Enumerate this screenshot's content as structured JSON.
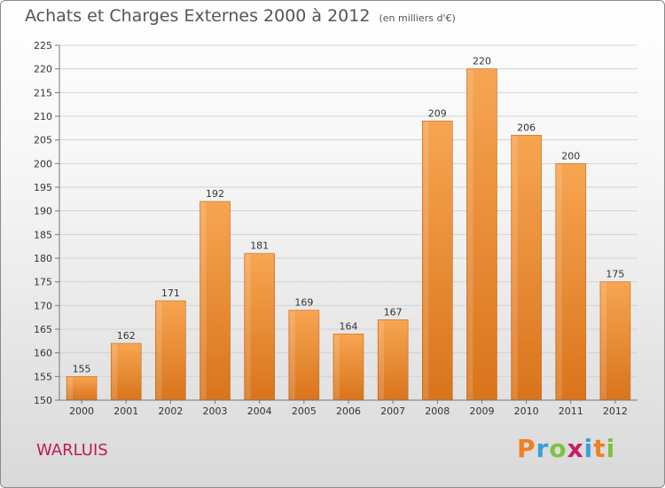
{
  "title": "Achats et Charges Externes 2000 à 2012",
  "subtitle": "(en milliers d'€)",
  "town": "WARLUIS",
  "logo": {
    "letters": [
      "P",
      "r",
      "o",
      "x",
      "i",
      "t",
      "i"
    ],
    "colors": [
      "#f08020",
      "#3aa0d8",
      "#7cc242",
      "#c81e63",
      "#3aa0d8",
      "#f08020",
      "#7cc242"
    ]
  },
  "chart_data": {
    "type": "bar",
    "categories": [
      "2000",
      "2001",
      "2002",
      "2003",
      "2004",
      "2005",
      "2006",
      "2007",
      "2008",
      "2009",
      "2010",
      "2011",
      "2012"
    ],
    "values": [
      155,
      162,
      171,
      192,
      181,
      169,
      164,
      167,
      209,
      220,
      206,
      200,
      175
    ],
    "title": "Achats et Charges Externes 2000 à 2012",
    "xlabel": "",
    "ylabel": "",
    "ylim": [
      150,
      225
    ],
    "yticks": [
      150,
      155,
      160,
      165,
      170,
      175,
      180,
      185,
      190,
      195,
      200,
      205,
      210,
      215,
      220,
      225
    ],
    "grid": true,
    "bar_color": "#f0913a"
  }
}
